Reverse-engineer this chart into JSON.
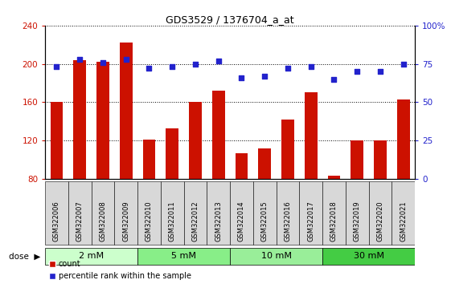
{
  "title": "GDS3529 / 1376704_a_at",
  "samples": [
    "GSM322006",
    "GSM322007",
    "GSM322008",
    "GSM322009",
    "GSM322010",
    "GSM322011",
    "GSM322012",
    "GSM322013",
    "GSM322014",
    "GSM322015",
    "GSM322016",
    "GSM322017",
    "GSM322018",
    "GSM322019",
    "GSM322020",
    "GSM322021"
  ],
  "counts": [
    160,
    204,
    202,
    222,
    121,
    133,
    160,
    172,
    107,
    112,
    142,
    170,
    83,
    120,
    120,
    163
  ],
  "percentiles": [
    73,
    78,
    76,
    78,
    72,
    73,
    75,
    77,
    66,
    67,
    72,
    73,
    65,
    70,
    70,
    75
  ],
  "ylim_left": [
    80,
    240
  ],
  "ylim_right": [
    0,
    100
  ],
  "yticks_left": [
    80,
    120,
    160,
    200,
    240
  ],
  "yticks_right": [
    0,
    25,
    50,
    75,
    100
  ],
  "bar_color": "#cc1100",
  "dot_color": "#2222cc",
  "plot_bg": "#ffffff",
  "tick_box_color": "#d8d8d8",
  "tick_label_color_left": "#cc1100",
  "tick_label_color_right": "#2222cc",
  "dose_groups": [
    {
      "label": "2 mM",
      "start": 0,
      "end": 4,
      "color": "#ccffcc"
    },
    {
      "label": "5 mM",
      "start": 4,
      "end": 8,
      "color": "#88ee88"
    },
    {
      "label": "10 mM",
      "start": 8,
      "end": 12,
      "color": "#99ee99"
    },
    {
      "label": "30 mM",
      "start": 12,
      "end": 16,
      "color": "#44cc44"
    }
  ]
}
